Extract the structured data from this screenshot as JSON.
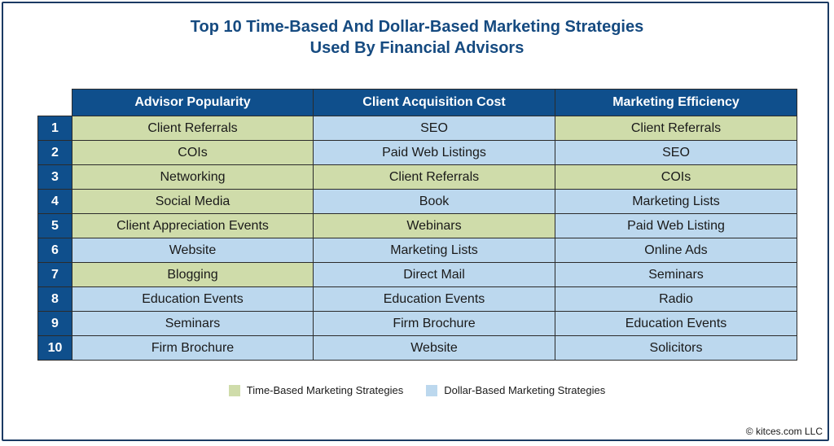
{
  "title_line1": "Top 10 Time-Based And Dollar-Based Marketing Strategies",
  "title_line2": "Used By Financial Advisors",
  "colors": {
    "time": "#cfdcaa",
    "dollar": "#bcd8ee",
    "header": "#0f4f8c"
  },
  "chart_data": {
    "type": "table",
    "title": "Top 10 Time-Based And Dollar-Based Marketing Strategies Used By Financial Advisors",
    "columns": [
      "Advisor Popularity",
      "Client Acquisition Cost",
      "Marketing Efficiency"
    ],
    "rows": [
      {
        "rank": "1",
        "cells": [
          {
            "text": "Client Referrals",
            "type": "time"
          },
          {
            "text": "SEO",
            "type": "dollar"
          },
          {
            "text": "Client Referrals",
            "type": "time"
          }
        ]
      },
      {
        "rank": "2",
        "cells": [
          {
            "text": "COIs",
            "type": "time"
          },
          {
            "text": "Paid Web Listings",
            "type": "dollar"
          },
          {
            "text": "SEO",
            "type": "dollar"
          }
        ]
      },
      {
        "rank": "3",
        "cells": [
          {
            "text": "Networking",
            "type": "time"
          },
          {
            "text": "Client Referrals",
            "type": "time"
          },
          {
            "text": "COIs",
            "type": "time"
          }
        ]
      },
      {
        "rank": "4",
        "cells": [
          {
            "text": "Social Media",
            "type": "time"
          },
          {
            "text": "Book",
            "type": "dollar"
          },
          {
            "text": "Marketing Lists",
            "type": "dollar"
          }
        ]
      },
      {
        "rank": "5",
        "cells": [
          {
            "text": "Client Appreciation Events",
            "type": "time"
          },
          {
            "text": "Webinars",
            "type": "time"
          },
          {
            "text": "Paid Web Listing",
            "type": "dollar"
          }
        ]
      },
      {
        "rank": "6",
        "cells": [
          {
            "text": "Website",
            "type": "dollar"
          },
          {
            "text": "Marketing Lists",
            "type": "dollar"
          },
          {
            "text": "Online Ads",
            "type": "dollar"
          }
        ]
      },
      {
        "rank": "7",
        "cells": [
          {
            "text": "Blogging",
            "type": "time"
          },
          {
            "text": "Direct Mail",
            "type": "dollar"
          },
          {
            "text": "Seminars",
            "type": "dollar"
          }
        ]
      },
      {
        "rank": "8",
        "cells": [
          {
            "text": "Education Events",
            "type": "dollar"
          },
          {
            "text": "Education Events",
            "type": "dollar"
          },
          {
            "text": "Radio",
            "type": "dollar"
          }
        ]
      },
      {
        "rank": "9",
        "cells": [
          {
            "text": "Seminars",
            "type": "dollar"
          },
          {
            "text": "Firm Brochure",
            "type": "dollar"
          },
          {
            "text": "Education Events",
            "type": "dollar"
          }
        ]
      },
      {
        "rank": "10",
        "cells": [
          {
            "text": "Firm Brochure",
            "type": "dollar"
          },
          {
            "text": "Website",
            "type": "dollar"
          },
          {
            "text": "Solicitors",
            "type": "dollar"
          }
        ]
      }
    ],
    "legend": [
      {
        "label": "Time-Based Marketing Strategies",
        "type": "time"
      },
      {
        "label": "Dollar-Based Marketing Strategies",
        "type": "dollar"
      }
    ]
  },
  "credit": "© kitces.com LLC"
}
